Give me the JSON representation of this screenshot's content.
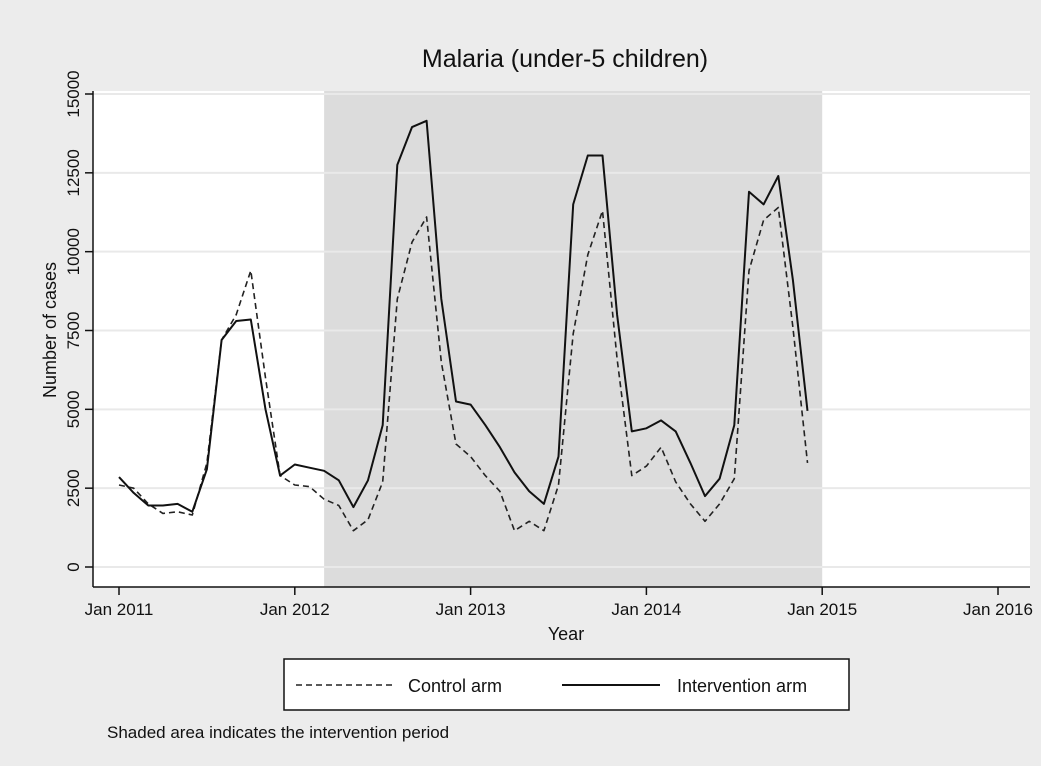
{
  "chart_data": {
    "type": "line",
    "title": "Malaria (under-5 children)",
    "xlabel": "Year",
    "ylabel": "Number of cases",
    "x_ticks": [
      "Jan 2011",
      "Jan 2012",
      "Jan 2013",
      "Jan 2014",
      "Jan 2015",
      "Jan 2016"
    ],
    "y_ticks": [
      "0",
      "2500",
      "5000",
      "7500",
      "10000",
      "12500",
      "15000"
    ],
    "ylim": [
      0,
      15000
    ],
    "xlim": [
      "Jan 2011",
      "Jan 2016"
    ],
    "grid": "horizontal",
    "legend_position": "bottom",
    "shaded_period": {
      "start": "Mar 2012",
      "end": "Jan 2015",
      "color": "#dcdcdc"
    },
    "note": "Shaded area indicates the intervention period",
    "series": [
      {
        "name": "Control arm",
        "style": "dashed",
        "color": "#222222",
        "points": [
          [
            "Jan 2011",
            2600
          ],
          [
            "Feb 2011",
            2500
          ],
          [
            "Mar 2011",
            2000
          ],
          [
            "Apr 2011",
            1700
          ],
          [
            "May 2011",
            1750
          ],
          [
            "Jun 2011",
            1650
          ],
          [
            "Jul 2011",
            3300
          ],
          [
            "Aug 2011",
            7200
          ],
          [
            "Sep 2011",
            8000
          ],
          [
            "Oct 2011",
            9400
          ],
          [
            "Nov 2011",
            6000
          ],
          [
            "Dec 2011",
            2900
          ],
          [
            "Jan 2012",
            2600
          ],
          [
            "Feb 2012",
            2550
          ],
          [
            "Mar 2012",
            2150
          ],
          [
            "Apr 2012",
            1950
          ],
          [
            "May 2012",
            1150
          ],
          [
            "Jun 2012",
            1500
          ],
          [
            "Jul 2012",
            2700
          ],
          [
            "Aug 2012",
            8500
          ],
          [
            "Sep 2012",
            10300
          ],
          [
            "Oct 2012",
            11100
          ],
          [
            "Nov 2012",
            6500
          ],
          [
            "Dec 2012",
            3900
          ],
          [
            "Jan 2013",
            3500
          ],
          [
            "Feb 2013",
            2900
          ],
          [
            "Mar 2013",
            2400
          ],
          [
            "Apr 2013",
            1150
          ],
          [
            "May 2013",
            1450
          ],
          [
            "Jun 2013",
            1150
          ],
          [
            "Jul 2013",
            2600
          ],
          [
            "Aug 2013",
            7400
          ],
          [
            "Sep 2013",
            9900
          ],
          [
            "Oct 2013",
            11300
          ],
          [
            "Nov 2013",
            6600
          ],
          [
            "Dec 2013",
            2900
          ],
          [
            "Jan 2014",
            3200
          ],
          [
            "Feb 2014",
            3800
          ],
          [
            "Mar 2014",
            2700
          ],
          [
            "Apr 2014",
            2000
          ],
          [
            "May 2014",
            1450
          ],
          [
            "Jun 2014",
            2000
          ],
          [
            "Jul 2014",
            2800
          ],
          [
            "Aug 2014",
            9400
          ],
          [
            "Sep 2014",
            11000
          ],
          [
            "Oct 2014",
            11400
          ],
          [
            "Nov 2014",
            7600
          ],
          [
            "Dec 2014",
            3300
          ]
        ]
      },
      {
        "name": "Intervention arm",
        "style": "solid",
        "color": "#111111",
        "points": [
          [
            "Jan 2011",
            2850
          ],
          [
            "Feb 2011",
            2350
          ],
          [
            "Mar 2011",
            1950
          ],
          [
            "Apr 2011",
            1950
          ],
          [
            "May 2011",
            2000
          ],
          [
            "Jun 2011",
            1750
          ],
          [
            "Jul 2011",
            3100
          ],
          [
            "Aug 2011",
            7200
          ],
          [
            "Sep 2011",
            7800
          ],
          [
            "Oct 2011",
            7850
          ],
          [
            "Nov 2011",
            5000
          ],
          [
            "Dec 2011",
            2900
          ],
          [
            "Jan 2012",
            3250
          ],
          [
            "Feb 2012",
            3150
          ],
          [
            "Mar 2012",
            3050
          ],
          [
            "Apr 2012",
            2750
          ],
          [
            "May 2012",
            1900
          ],
          [
            "Jun 2012",
            2750
          ],
          [
            "Jul 2012",
            4500
          ],
          [
            "Aug 2012",
            12750
          ],
          [
            "Sep 2012",
            13950
          ],
          [
            "Oct 2012",
            14150
          ],
          [
            "Nov 2012",
            8500
          ],
          [
            "Dec 2012",
            5250
          ],
          [
            "Jan 2013",
            5150
          ],
          [
            "Feb 2013",
            4500
          ],
          [
            "Mar 2013",
            3800
          ],
          [
            "Apr 2013",
            3000
          ],
          [
            "May 2013",
            2400
          ],
          [
            "Jun 2013",
            2000
          ],
          [
            "Jul 2013",
            3500
          ],
          [
            "Aug 2013",
            11500
          ],
          [
            "Sep 2013",
            13050
          ],
          [
            "Oct 2013",
            13050
          ],
          [
            "Nov 2013",
            8000
          ],
          [
            "Dec 2013",
            4300
          ],
          [
            "Jan 2014",
            4400
          ],
          [
            "Feb 2014",
            4650
          ],
          [
            "Mar 2014",
            4300
          ],
          [
            "Apr 2014",
            3300
          ],
          [
            "May 2014",
            2250
          ],
          [
            "Jun 2014",
            2800
          ],
          [
            "Jul 2014",
            4500
          ],
          [
            "Aug 2014",
            11900
          ],
          [
            "Sep 2014",
            11500
          ],
          [
            "Oct 2014",
            12400
          ],
          [
            "Nov 2014",
            9100
          ],
          [
            "Dec 2014",
            4950
          ]
        ]
      }
    ]
  }
}
